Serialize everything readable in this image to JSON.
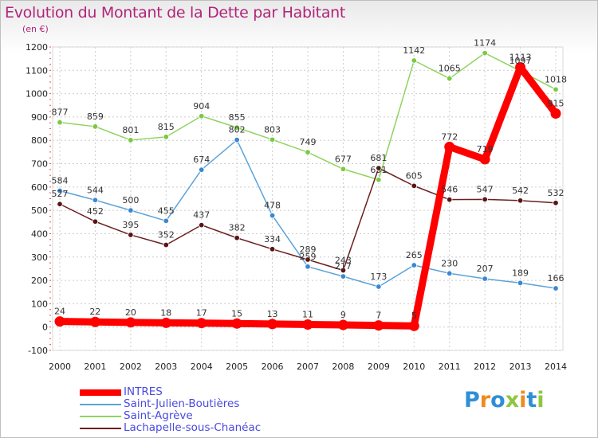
{
  "title": "Evolution du Montant de la Dette par Habitant",
  "unit_label": "(en €)",
  "logo": {
    "letters": [
      {
        "ch": "P",
        "color": "#2f8fd6"
      },
      {
        "ch": "r",
        "color": "#f08a1c"
      },
      {
        "ch": "o",
        "color": "#2f8fd6"
      },
      {
        "ch": "x",
        "color": "#8dc63f"
      },
      {
        "ch": "i",
        "color": "#f08a1c"
      },
      {
        "ch": "t",
        "color": "#2f8fd6"
      },
      {
        "ch": "i",
        "color": "#8dc63f"
      }
    ]
  },
  "chart_data": {
    "type": "line",
    "x": [
      "2000",
      "2001",
      "2002",
      "2003",
      "2004",
      "2005",
      "2006",
      "2007",
      "2008",
      "2009",
      "2010",
      "2011",
      "2012",
      "2013",
      "2014"
    ],
    "ylim": [
      -100,
      1200
    ],
    "yticks": [
      -100,
      0,
      100,
      200,
      300,
      400,
      500,
      600,
      700,
      800,
      900,
      1000,
      1100,
      1200
    ],
    "grid": true,
    "legend_position": "bottom-left",
    "series": [
      {
        "name": "INTRES",
        "color": "#ff0000",
        "style": "thick",
        "values": [
          24,
          22,
          20,
          18,
          17,
          15,
          13,
          11,
          9,
          7,
          5,
          772,
          719,
          1113,
          915
        ]
      },
      {
        "name": "Saint-Julien-Boutières",
        "color": "#5ba3d9",
        "style": "thin",
        "marker": "#3b87d0",
        "values": [
          584,
          544,
          500,
          455,
          674,
          802,
          478,
          259,
          217,
          173,
          265,
          230,
          207,
          189,
          166
        ]
      },
      {
        "name": "Saint-Agrève",
        "color": "#8fd45e",
        "style": "thin",
        "marker": "#7ac943",
        "values": [
          877,
          859,
          801,
          815,
          904,
          855,
          803,
          749,
          677,
          631,
          1142,
          1065,
          1174,
          1097,
          1018
        ]
      },
      {
        "name": "Lachapelle-sous-Chanéac",
        "color": "#6b1f1f",
        "style": "thin",
        "marker": "#5a1414",
        "values": [
          527,
          452,
          395,
          352,
          437,
          382,
          334,
          289,
          243,
          681,
          605,
          546,
          547,
          542,
          532
        ]
      }
    ],
    "data_labels": [
      {
        "series": 0,
        "labels": [
          "24",
          "22",
          "20",
          "18",
          "17",
          "15",
          "13",
          "11",
          "9",
          "7",
          "5",
          "772",
          "719",
          "1113",
          "915"
        ]
      },
      {
        "series": 1,
        "labels": [
          "584",
          "544",
          "500",
          "455",
          "674",
          "802",
          "478",
          "259",
          "217",
          "173",
          "265",
          "230",
          "207",
          "189",
          "166"
        ]
      },
      {
        "series": 2,
        "labels": [
          "877",
          "859",
          "801",
          "815",
          "904",
          "855",
          "803",
          "749",
          "677",
          "631",
          "1142",
          "1065",
          "1174",
          "1097",
          "1018"
        ]
      },
      {
        "series": 3,
        "labels": [
          "527",
          "452",
          "395",
          "352",
          "437",
          "382",
          "334",
          "289",
          "243",
          "681",
          "605",
          "546",
          "547",
          "542",
          "532"
        ]
      }
    ]
  }
}
